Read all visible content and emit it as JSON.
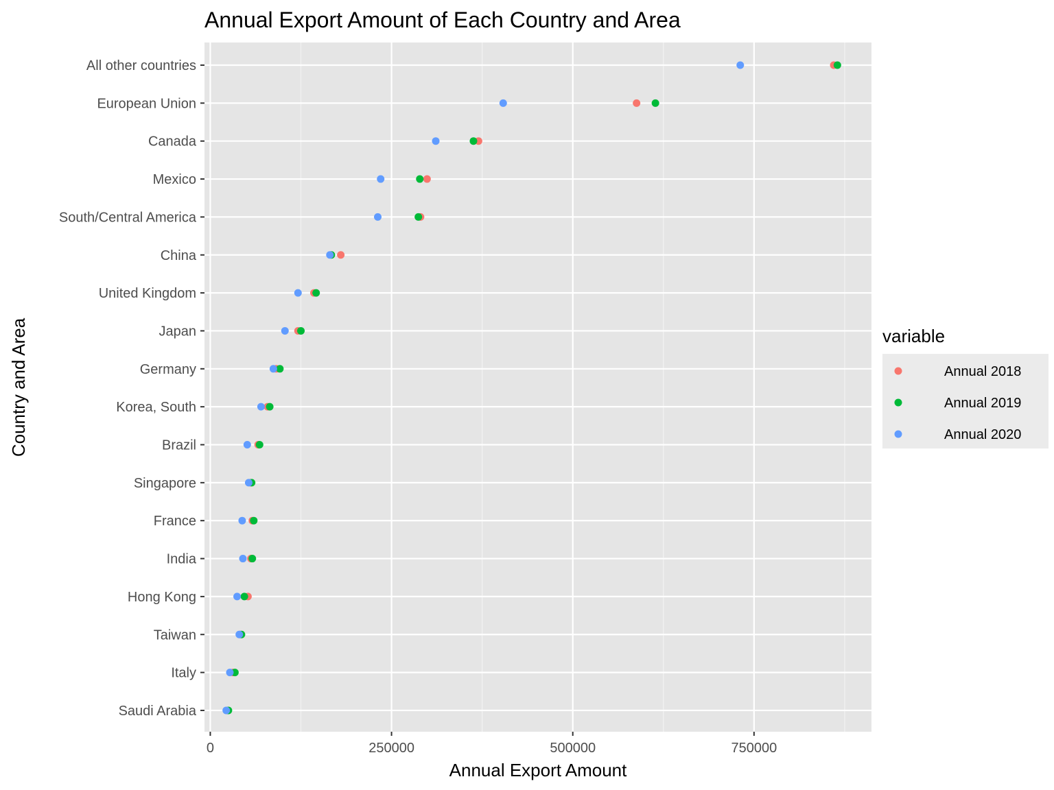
{
  "chart_data": {
    "type": "scatter",
    "title": "Annual Export Amount of Each Country and Area",
    "xlabel": "Annual Export Amount",
    "ylabel": "Country and Area",
    "xlim": [
      -8000,
      912000
    ],
    "xticks": [
      0,
      250000,
      500000,
      750000
    ],
    "xtick_labels": [
      "0",
      "250000",
      "500000",
      "750000"
    ],
    "categories": [
      "All other countries",
      "European Union",
      "Canada",
      "Mexico",
      "South/Central America",
      "China",
      "United Kingdom",
      "Japan",
      "Germany",
      "Korea, South",
      "Brazil",
      "Singapore",
      "France",
      "India",
      "Hong Kong",
      "Taiwan",
      "Italy",
      "Saudi Arabia"
    ],
    "grid": true,
    "background": "#e5e5e5",
    "legend": {
      "title": "variable",
      "position": "right"
    },
    "series": [
      {
        "name": "Annual 2018",
        "color": "#f8766d",
        "values": [
          860000,
          588000,
          370000,
          299000,
          290000,
          180000,
          143000,
          121000,
          91000,
          79000,
          66000,
          55000,
          58000,
          56000,
          52000,
          41000,
          31000,
          23000
        ]
      },
      {
        "name": "Annual 2019",
        "color": "#00ba38",
        "values": [
          865000,
          614000,
          363000,
          289000,
          287000,
          167000,
          146000,
          125000,
          96000,
          82000,
          68000,
          57000,
          60000,
          58000,
          47000,
          43000,
          34000,
          25000
        ]
      },
      {
        "name": "Annual 2020",
        "color": "#619cff",
        "values": [
          731000,
          404000,
          311000,
          235000,
          231000,
          165000,
          121000,
          103000,
          87000,
          70000,
          51000,
          53000,
          44000,
          45000,
          37000,
          40000,
          27000,
          22000
        ]
      }
    ]
  }
}
